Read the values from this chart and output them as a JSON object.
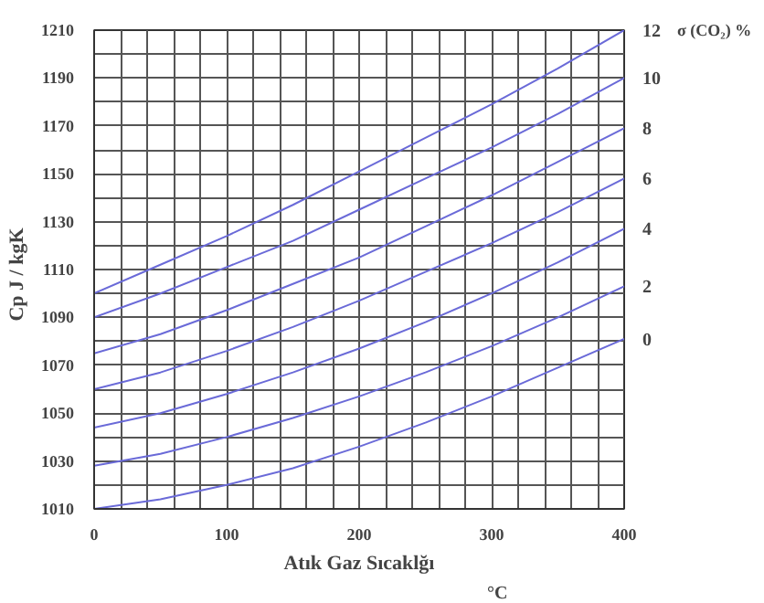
{
  "chart_data": {
    "type": "line",
    "xlabel": "Atık Gaz Sıcaklğı",
    "ylabel": "Cp   J / kgK",
    "x": [
      0,
      50,
      100,
      150,
      200,
      250,
      300,
      350,
      400
    ],
    "series": [
      {
        "name": "0",
        "color": "#6a6ad8",
        "values": [
          1010,
          1014,
          1020,
          1027,
          1036,
          1046,
          1057,
          1069,
          1081
        ]
      },
      {
        "name": "2",
        "color": "#6a6ad8",
        "values": [
          1028,
          1033,
          1040,
          1048,
          1057,
          1067,
          1078,
          1090,
          1103
        ]
      },
      {
        "name": "4",
        "color": "#6a6ad8",
        "values": [
          1044,
          1050,
          1058,
          1067,
          1077,
          1088,
          1100,
          1113,
          1127
        ]
      },
      {
        "name": "6",
        "color": "#6a6ad8",
        "values": [
          1060,
          1067,
          1076,
          1086,
          1097,
          1109,
          1121,
          1134,
          1148
        ]
      },
      {
        "name": "8",
        "color": "#6a6ad8",
        "values": [
          1075,
          1083,
          1093,
          1104,
          1115,
          1128,
          1141,
          1155,
          1169
        ]
      },
      {
        "name": "10",
        "color": "#6a6ad8",
        "values": [
          1090,
          1100,
          1111,
          1122,
          1135,
          1148,
          1161,
          1175,
          1190
        ]
      },
      {
        "name": "12",
        "color": "#6a6ad8",
        "values": [
          1100,
          1112,
          1124,
          1137,
          1151,
          1165,
          1179,
          1194,
          1210
        ]
      }
    ],
    "annotations": [
      "σ (CO₂)   %",
      "°C"
    ],
    "xlim": [
      0,
      400
    ],
    "ylim": [
      1010,
      1210
    ],
    "xticks": [
      0,
      100,
      200,
      300,
      400
    ],
    "yticks": [
      1010,
      1030,
      1050,
      1070,
      1090,
      1110,
      1130,
      1150,
      1170,
      1190,
      1210
    ],
    "grid": true,
    "marker": "none",
    "line_style": "solid"
  }
}
